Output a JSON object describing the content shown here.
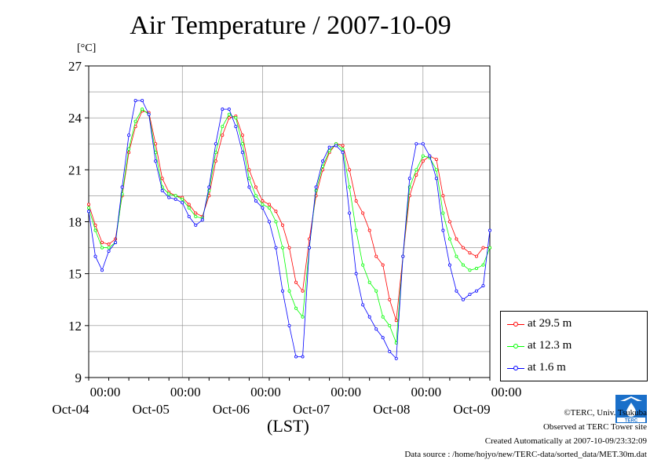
{
  "title": "Air Temperature / 2007-10-09",
  "unit_label": "[°C]",
  "x_unit_label": "(LST)",
  "credits": {
    "copyright": "©TERC, Univ. Tsukuba",
    "observed": "Observed at TERC Tower site",
    "created": "Created Automatically at 2007-10-09/23:32:09",
    "source": "Data source : /home/hojyo/new/TERC-data/sorted_data/MET.30m.dat"
  },
  "logo_text": "TERC",
  "colors": {
    "s1": "#ff0000",
    "s2": "#00ff00",
    "s3": "#0000ff",
    "grid": "#000000"
  },
  "chart_data": {
    "type": "line",
    "title": "Air Temperature / 2007-10-09",
    "ylabel": "[°C]",
    "xlabel": "(LST)",
    "ylim": [
      9,
      27
    ],
    "yticks": [
      9,
      12,
      15,
      18,
      21,
      24,
      27
    ],
    "xlim_hours": [
      -28,
      92
    ],
    "xticks": [
      {
        "time": "00:00",
        "date": "Oct-04"
      },
      {
        "time": "00:00",
        "date": "Oct-05"
      },
      {
        "time": "00:00",
        "date": "Oct-06"
      },
      {
        "time": "00:00",
        "date": "Oct-07"
      },
      {
        "time": "00:00",
        "date": "Oct-08"
      },
      {
        "time": "00:00",
        "date": "Oct-09"
      }
    ],
    "grid": true,
    "legend": "bottom-right, outside",
    "series": [
      {
        "name": "at 29.5 m",
        "points": [
          [
            -28,
            19
          ],
          [
            -26,
            17.8
          ],
          [
            -24,
            16.8
          ],
          [
            -22,
            16.7
          ],
          [
            -20,
            17
          ],
          [
            -18,
            19.5
          ],
          [
            -16,
            22
          ],
          [
            -14,
            23.5
          ],
          [
            -12,
            24.4
          ],
          [
            -10,
            24.3
          ],
          [
            -8,
            22.5
          ],
          [
            -6,
            20.5
          ],
          [
            -4,
            19.7
          ],
          [
            -2,
            19.5
          ],
          [
            0,
            19.4
          ],
          [
            2,
            19
          ],
          [
            4,
            18.5
          ],
          [
            6,
            18.3
          ],
          [
            8,
            19.5
          ],
          [
            10,
            21.5
          ],
          [
            12,
            23
          ],
          [
            14,
            24
          ],
          [
            16,
            24.1
          ],
          [
            18,
            23
          ],
          [
            20,
            21
          ],
          [
            22,
            20
          ],
          [
            24,
            19.2
          ],
          [
            26,
            19
          ],
          [
            28,
            18.6
          ],
          [
            30,
            17.8
          ],
          [
            32,
            16.5
          ],
          [
            34,
            14.5
          ],
          [
            36,
            14
          ],
          [
            38,
            17
          ],
          [
            40,
            19.5
          ],
          [
            42,
            21
          ],
          [
            44,
            22
          ],
          [
            46,
            22.5
          ],
          [
            48,
            22.4
          ],
          [
            50,
            21
          ],
          [
            52,
            19.2
          ],
          [
            54,
            18.5
          ],
          [
            56,
            17.5
          ],
          [
            58,
            16
          ],
          [
            60,
            15.5
          ],
          [
            62,
            13.5
          ],
          [
            64,
            12.3
          ],
          [
            66,
            16
          ],
          [
            68,
            19.5
          ],
          [
            70,
            20.7
          ],
          [
            72,
            21.5
          ],
          [
            74,
            21.8
          ],
          [
            76,
            21.6
          ],
          [
            78,
            19.5
          ],
          [
            80,
            18
          ],
          [
            82,
            17
          ],
          [
            84,
            16.5
          ],
          [
            86,
            16.2
          ],
          [
            88,
            16
          ],
          [
            90,
            16.5
          ],
          [
            92,
            16.5
          ]
        ]
      },
      {
        "name": "at 12.3 m",
        "points": [
          [
            -28,
            18.8
          ],
          [
            -26,
            17.5
          ],
          [
            -24,
            16.5
          ],
          [
            -22,
            16.5
          ],
          [
            -20,
            16.8
          ],
          [
            -18,
            19.6
          ],
          [
            -16,
            22.2
          ],
          [
            -14,
            23.8
          ],
          [
            -12,
            24.5
          ],
          [
            -10,
            24.2
          ],
          [
            -8,
            22
          ],
          [
            -6,
            20
          ],
          [
            -4,
            19.6
          ],
          [
            -2,
            19.5
          ],
          [
            0,
            19.3
          ],
          [
            2,
            18.8
          ],
          [
            4,
            18.3
          ],
          [
            6,
            18.2
          ],
          [
            8,
            19.8
          ],
          [
            10,
            22
          ],
          [
            12,
            23.5
          ],
          [
            14,
            24.2
          ],
          [
            16,
            24
          ],
          [
            18,
            22.5
          ],
          [
            20,
            20.5
          ],
          [
            22,
            19.5
          ],
          [
            24,
            19
          ],
          [
            26,
            18.8
          ],
          [
            28,
            18
          ],
          [
            30,
            16.5
          ],
          [
            32,
            14
          ],
          [
            34,
            13
          ],
          [
            36,
            12.5
          ],
          [
            38,
            16.5
          ],
          [
            40,
            19.8
          ],
          [
            42,
            21.2
          ],
          [
            44,
            22.1
          ],
          [
            46,
            22.5
          ],
          [
            48,
            22.2
          ],
          [
            50,
            20
          ],
          [
            52,
            17.5
          ],
          [
            54,
            15.5
          ],
          [
            56,
            14.5
          ],
          [
            58,
            14
          ],
          [
            60,
            12.5
          ],
          [
            62,
            12
          ],
          [
            64,
            11
          ],
          [
            66,
            16
          ],
          [
            68,
            20
          ],
          [
            70,
            21
          ],
          [
            72,
            21.8
          ],
          [
            74,
            21.7
          ],
          [
            76,
            21
          ],
          [
            78,
            18.5
          ],
          [
            80,
            17
          ],
          [
            82,
            16
          ],
          [
            84,
            15.5
          ],
          [
            86,
            15.2
          ],
          [
            88,
            15.3
          ],
          [
            90,
            15.5
          ],
          [
            92,
            16.5
          ]
        ]
      },
      {
        "name": "at 1.6 m",
        "points": [
          [
            -28,
            18.6
          ],
          [
            -26,
            16
          ],
          [
            -24,
            15.2
          ],
          [
            -22,
            16.3
          ],
          [
            -20,
            16.8
          ],
          [
            -18,
            20
          ],
          [
            -16,
            23
          ],
          [
            -14,
            25
          ],
          [
            -12,
            25
          ],
          [
            -10,
            24.2
          ],
          [
            -8,
            21.5
          ],
          [
            -6,
            19.8
          ],
          [
            -4,
            19.4
          ],
          [
            -2,
            19.3
          ],
          [
            0,
            19.1
          ],
          [
            2,
            18.3
          ],
          [
            4,
            17.8
          ],
          [
            6,
            18.1
          ],
          [
            8,
            20
          ],
          [
            10,
            22.5
          ],
          [
            12,
            24.5
          ],
          [
            14,
            24.5
          ],
          [
            16,
            23.5
          ],
          [
            18,
            22
          ],
          [
            20,
            20
          ],
          [
            22,
            19.2
          ],
          [
            24,
            18.8
          ],
          [
            26,
            18
          ],
          [
            28,
            16.5
          ],
          [
            30,
            14
          ],
          [
            32,
            12
          ],
          [
            34,
            10.2
          ],
          [
            36,
            10.2
          ],
          [
            38,
            16.5
          ],
          [
            40,
            20
          ],
          [
            42,
            21.5
          ],
          [
            44,
            22.3
          ],
          [
            46,
            22.4
          ],
          [
            48,
            22
          ],
          [
            50,
            18.5
          ],
          [
            52,
            15
          ],
          [
            54,
            13.2
          ],
          [
            56,
            12.5
          ],
          [
            58,
            11.8
          ],
          [
            60,
            11.3
          ],
          [
            62,
            10.5
          ],
          [
            64,
            10.1
          ],
          [
            66,
            16
          ],
          [
            68,
            20.5
          ],
          [
            70,
            22.5
          ],
          [
            72,
            22.5
          ],
          [
            74,
            21.8
          ],
          [
            76,
            20.5
          ],
          [
            78,
            17.5
          ],
          [
            80,
            15.5
          ],
          [
            82,
            14
          ],
          [
            84,
            13.5
          ],
          [
            86,
            13.8
          ],
          [
            88,
            14
          ],
          [
            90,
            14.3
          ],
          [
            92,
            17.5
          ]
        ]
      }
    ]
  }
}
